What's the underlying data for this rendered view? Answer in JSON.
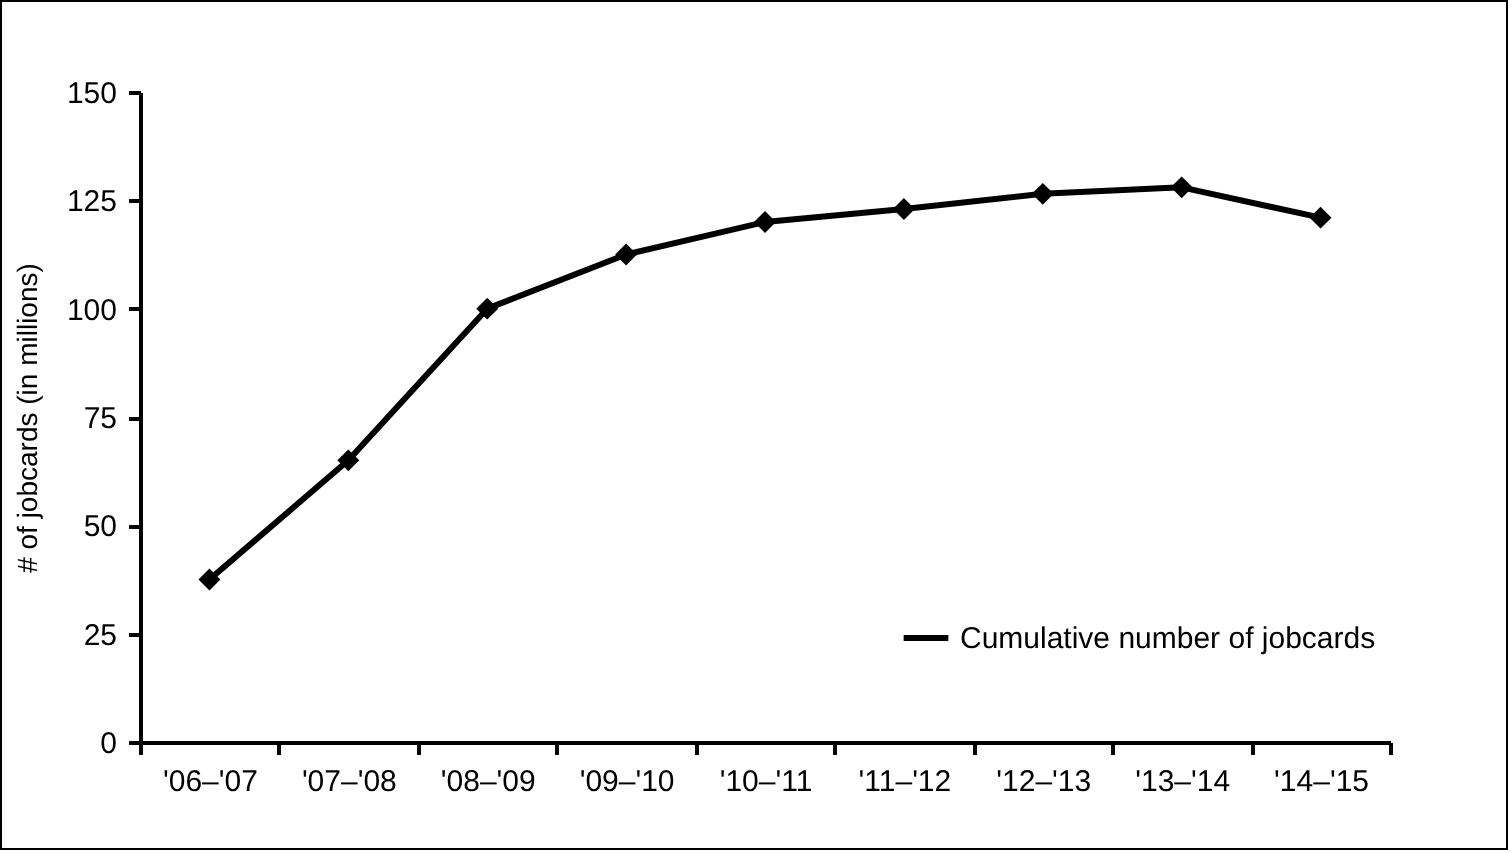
{
  "chart_data": {
    "type": "line",
    "ylabel": "# of jobcards (in millions)",
    "categories": [
      "'06–'07",
      "'07–'08",
      "'08–'09",
      "'09–'10",
      "'10–'11",
      "'11–'12",
      "'12–'13",
      "'13–'14",
      "'14–'15"
    ],
    "series": [
      {
        "name": "Cumulative number of jobcards",
        "color": "#000000",
        "values": [
          37.5,
          65,
          100,
          112.5,
          120,
          123,
          126.5,
          128,
          121
        ]
      }
    ],
    "ylim": [
      0,
      150
    ],
    "yticks": [
      0,
      25,
      50,
      75,
      100,
      125,
      150
    ],
    "grid": false,
    "legend": "bottom right",
    "marker": "diamond",
    "line_style": "solid"
  }
}
